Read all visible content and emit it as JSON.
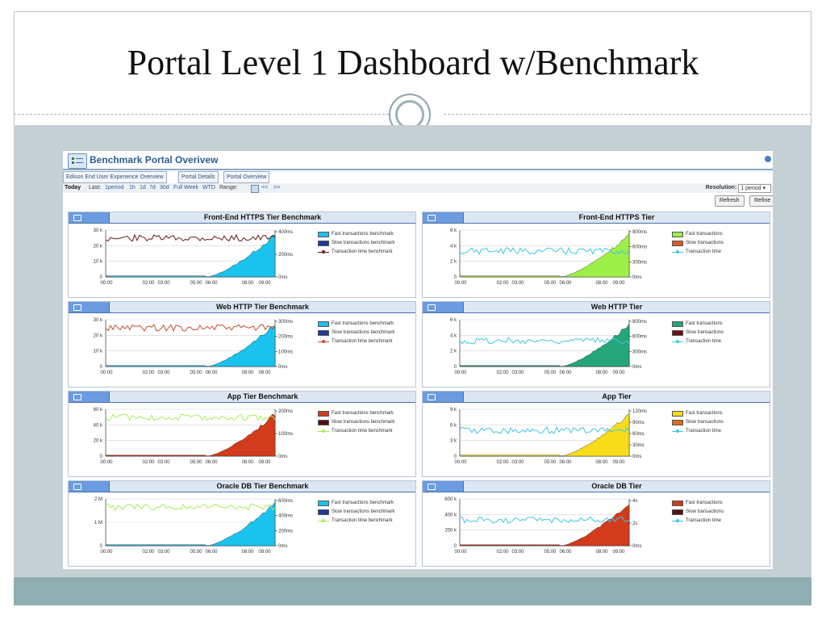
{
  "slide": {
    "title": "Portal Level 1 Dashboard w/Benchmark"
  },
  "colors": {
    "fast": "#19c3ee",
    "slow": "#1d3b9c",
    "trans": "#6b1717"
  },
  "portal": {
    "title": "Benchmark Portal Overivew",
    "tabs": [
      "Edison End User Experience Overview",
      "Portal Details",
      "Portal Overview"
    ],
    "time_bar": {
      "today": "Today",
      "last": "Last:",
      "periods": [
        "1period",
        "1h",
        "1d",
        "7d",
        "30d",
        "Full Week",
        "WTD"
      ],
      "range": "Range:",
      "prev": "<<",
      "next": ">>"
    },
    "resolution_label": "Resolution:",
    "resolution_value": "1 period",
    "refresh": "Refresh",
    "refine": "Refine"
  },
  "x_ticks": [
    "00:00",
    "02:00",
    "03:00",
    "05:00",
    "06:00",
    "08:00",
    "09:00"
  ],
  "panels": [
    {
      "title": "Front-End HTTPS Tier Benchmark",
      "legend": [
        "Fast transactions benchmark",
        "Slow transactions benchmark",
        "Transaction time benchmark"
      ],
      "area_color": "#19c3ee",
      "area2_color": "#1d3b9c",
      "line_color": "#6b1717",
      "y_left": [
        "30 k",
        "20 k",
        "10 k",
        "0"
      ],
      "y_right": [
        "400ms",
        "200ms",
        "0ms"
      ]
    },
    {
      "title": "Front-End HTTPS Tier",
      "legend": [
        "Fast transactions",
        "Slow transactions",
        "Transaction time"
      ],
      "area_color": "#9ef048",
      "area2_color": "#e0562a",
      "line_color": "#3fc5e8",
      "y_left": [
        "6 k",
        "4 k",
        "2 k",
        "0"
      ],
      "y_right": [
        "900ms",
        "600ms",
        "300ms",
        "0ms"
      ]
    },
    {
      "title": "Web HTTP Tier Benchmark",
      "legend": [
        "Fast transactions benchmark",
        "Slow transactions benchmark",
        "Transaction time benchmark"
      ],
      "area_color": "#19c3ee",
      "area2_color": "#1d3b9c",
      "line_color": "#c94b2a",
      "y_left": [
        "30 k",
        "20 k",
        "10 k",
        "0"
      ],
      "y_right": [
        "300ms",
        "200ms",
        "100ms",
        "0ms"
      ]
    },
    {
      "title": "Web HTTP Tier",
      "legend": [
        "Fast transactions",
        "Slow transactions",
        "Transaction time"
      ],
      "area_color": "#25a67a",
      "area2_color": "#6b1010",
      "line_color": "#3fc5e8",
      "y_left": [
        "6 k",
        "4 k",
        "2 k",
        "0"
      ],
      "y_right": [
        "900ms",
        "600ms",
        "300ms",
        "0ms"
      ]
    },
    {
      "title": "App Tier Benchmark",
      "legend": [
        "Fast transactions benchmark",
        "Slow transactions benchmark",
        "Transaction time benchmark"
      ],
      "area_color": "#d23b1c",
      "area2_color": "#5a0f0f",
      "line_color": "#a8ec58",
      "y_left": [
        "60 k",
        "40 k",
        "20 k",
        "0"
      ],
      "y_right": [
        "200ms",
        "100ms",
        "0ms"
      ]
    },
    {
      "title": "App Tier",
      "legend": [
        "Fast transactions",
        "Slow transactions",
        "Transaction time"
      ],
      "area_color": "#f7dc1a",
      "area2_color": "#e26b1e",
      "line_color": "#3fc5e8",
      "y_left": [
        "9 k",
        "6 k",
        "3 k",
        "0"
      ],
      "y_right": [
        "120ms",
        "90ms",
        "60ms",
        "30ms",
        "0ms"
      ]
    },
    {
      "title": "Oracle DB Tier Benchmark",
      "legend": [
        "Fast transactions benchmark",
        "Slow transactions benchmark",
        "Transaction time benchmark"
      ],
      "area_color": "#19c3ee",
      "area2_color": "#1d3b9c",
      "line_color": "#a8ec58",
      "y_left": [
        "2 M",
        "1 M",
        "0"
      ],
      "y_right": [
        "600ms",
        "400ms",
        "200ms",
        "0ms"
      ]
    },
    {
      "title": "Oracle DB Tier",
      "legend": [
        "Fast transactions",
        "Slow transactions",
        "Transaction time"
      ],
      "area_color": "#d23b1c",
      "area2_color": "#5a0f0f",
      "line_color": "#3fc5e8",
      "y_left": [
        "600 k",
        "400 k",
        "200 k",
        "0"
      ],
      "y_right": [
        "4s",
        "2s",
        "0ms"
      ]
    }
  ]
}
